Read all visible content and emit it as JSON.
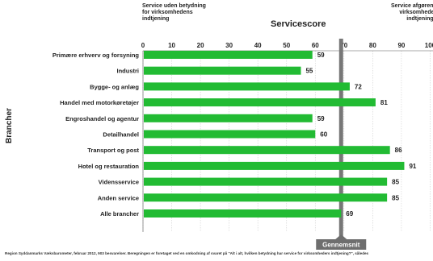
{
  "chart_data": {
    "type": "bar",
    "orientation": "horizontal",
    "title": "Servicescore",
    "ylabel": "Brancher",
    "header_left": "Service uden betydning for virksomhedens indtjening",
    "header_right": "Service afgørende for virksomhedens indtjening",
    "categories": [
      "Primære erhverv og forsyning",
      "Industri",
      "Bygge- og anlæg",
      "Handel med motorkøretøjer",
      "Engroshandel og agentur",
      "Detailhandel",
      "Transport og post",
      "Hotel og restauration",
      "Vidensservice",
      "Anden service",
      "Alle brancher"
    ],
    "values": [
      59,
      55,
      72,
      81,
      59,
      60,
      86,
      91,
      85,
      85,
      69
    ],
    "xlim": [
      0,
      100
    ],
    "xticks": [
      0,
      10,
      20,
      30,
      40,
      50,
      60,
      70,
      80,
      90,
      100
    ],
    "average_value": 69,
    "average_label": "Gennemsnit",
    "grid": true,
    "bar_color": "#22bb33",
    "average_line_color": "#777777",
    "footnote": "Region Syddanmarks Væksbarometer, februar 2012, 903 besvarelser. Beregningen er foretaget ved en omkodning af svaret på \"Alt i alt, hvilken betydning har service for virksomheders indtjening?\", således"
  }
}
